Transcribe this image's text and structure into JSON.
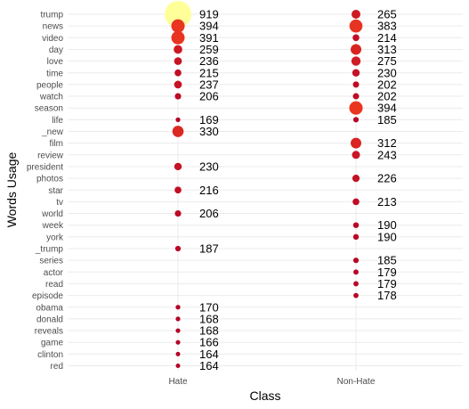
{
  "chart_data": {
    "type": "scatter",
    "title": "",
    "xlabel": "Class",
    "ylabel": "Words Usage",
    "categories_x": [
      "Hate",
      "Non-Hate"
    ],
    "categories_y": [
      "trump",
      "news",
      "video",
      "day",
      "love",
      "time",
      "people",
      "watch",
      "season",
      "life",
      "_new",
      "film",
      "review",
      "president",
      "photos",
      "star",
      "tv",
      "world",
      "week",
      "york",
      "_trump",
      "series",
      "actor",
      "read",
      "episode",
      "obama",
      "donald",
      "reveals",
      "game",
      "clinton",
      "red"
    ],
    "grid": true,
    "legend": "none",
    "color_low": "#b30026",
    "color_mid": "#f03b20",
    "color_high": "#ffff99",
    "series": [
      {
        "class": "Hate",
        "points": [
          {
            "word": "trump",
            "value": 919
          },
          {
            "word": "news",
            "value": 394
          },
          {
            "word": "video",
            "value": 391
          },
          {
            "word": "day",
            "value": 259
          },
          {
            "word": "love",
            "value": 236
          },
          {
            "word": "time",
            "value": 215
          },
          {
            "word": "people",
            "value": 237
          },
          {
            "word": "watch",
            "value": 206
          },
          {
            "word": "life",
            "value": 169
          },
          {
            "word": "_new",
            "value": 330
          },
          {
            "word": "president",
            "value": 230
          },
          {
            "word": "star",
            "value": 216
          },
          {
            "word": "world",
            "value": 206
          },
          {
            "word": "_trump",
            "value": 187
          },
          {
            "word": "obama",
            "value": 170
          },
          {
            "word": "donald",
            "value": 168
          },
          {
            "word": "reveals",
            "value": 168
          },
          {
            "word": "game",
            "value": 166
          },
          {
            "word": "clinton",
            "value": 164
          },
          {
            "word": "red",
            "value": 164
          }
        ]
      },
      {
        "class": "Non-Hate",
        "points": [
          {
            "word": "trump",
            "value": 265
          },
          {
            "word": "news",
            "value": 383
          },
          {
            "word": "video",
            "value": 214
          },
          {
            "word": "day",
            "value": 313
          },
          {
            "word": "love",
            "value": 275
          },
          {
            "word": "time",
            "value": 230
          },
          {
            "word": "people",
            "value": 202
          },
          {
            "word": "watch",
            "value": 202
          },
          {
            "word": "season",
            "value": 394
          },
          {
            "word": "life",
            "value": 185
          },
          {
            "word": "film",
            "value": 312
          },
          {
            "word": "review",
            "value": 243
          },
          {
            "word": "photos",
            "value": 226
          },
          {
            "word": "tv",
            "value": 213
          },
          {
            "word": "week",
            "value": 190
          },
          {
            "word": "york",
            "value": 190
          },
          {
            "word": "series",
            "value": 185
          },
          {
            "word": "actor",
            "value": 179
          },
          {
            "word": "read",
            "value": 179
          },
          {
            "word": "episode",
            "value": 178
          }
        ]
      }
    ]
  }
}
